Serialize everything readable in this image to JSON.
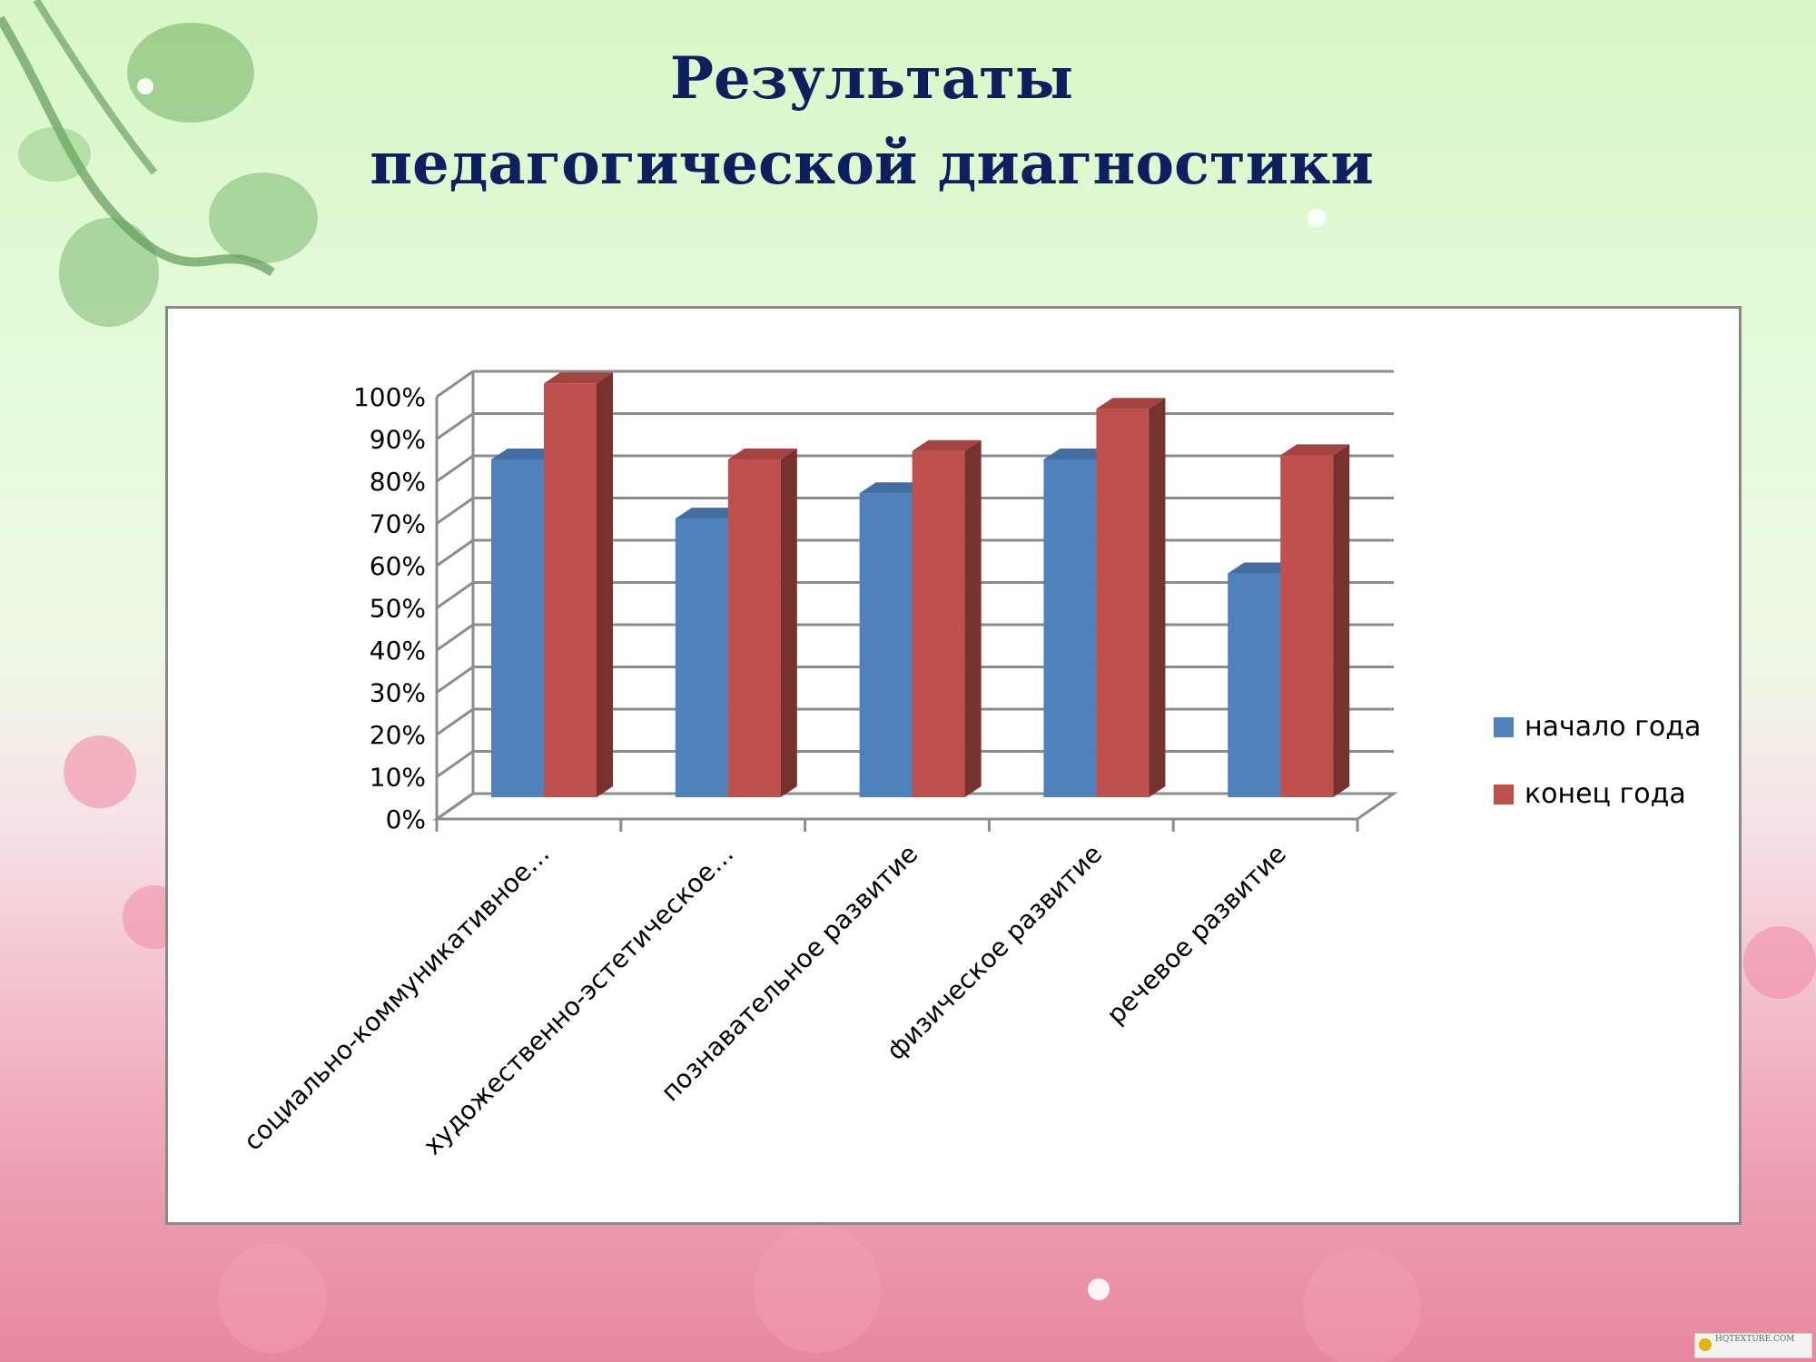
{
  "slide": {
    "title_line1": "Результаты",
    "title_line2": "педагогической диагностики",
    "title_color": "#0d1f5f",
    "watermark_text": "HQTEXTURE.COM"
  },
  "chart_data": {
    "type": "bar",
    "categories": [
      "социально-коммуникативное…",
      "художественно-эстетическое…",
      "познавательное развитие",
      "физическое развитие",
      "речевое развитие"
    ],
    "series": [
      {
        "name": "начало года",
        "values": [
          80,
          66,
          72,
          80,
          53
        ],
        "color": "#4f81bd"
      },
      {
        "name": "конец года",
        "values": [
          98,
          80,
          82,
          92,
          81
        ],
        "color": "#c0504d"
      }
    ],
    "y_ticks": [
      "0%",
      "10%",
      "20%",
      "30%",
      "40%",
      "50%",
      "60%",
      "70%",
      "80%",
      "90%",
      "100%"
    ],
    "ylim": [
      0,
      100
    ],
    "grid": true,
    "legend_position": "right",
    "title": "",
    "xlabel": "",
    "ylabel": ""
  }
}
